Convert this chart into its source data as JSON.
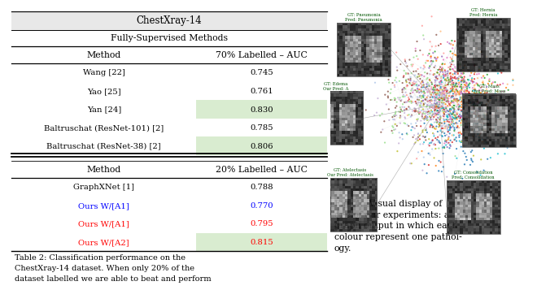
{
  "table_title": "ChestXray-14",
  "section1_header": "Fully-Supervised Methods",
  "col1_header": "Method",
  "col2_header_top": "70% Labelled – AUC",
  "col2_header_bottom": "20% Labelled – AUC",
  "top_rows": [
    {
      "method": "Wang [22]",
      "value": "0.745",
      "highlight": false,
      "color": "black"
    },
    {
      "method": "Yao [25]",
      "value": "0.761",
      "highlight": false,
      "color": "black"
    },
    {
      "method": "Yan [24]",
      "value": "0.830",
      "highlight": true,
      "color": "black"
    },
    {
      "method": "Baltruschat (ResNet-101) [2]",
      "value": "0.785",
      "highlight": false,
      "color": "black"
    },
    {
      "method": "Baltruschat (ResNet-38) [2]",
      "value": "0.806",
      "highlight": true,
      "color": "black"
    }
  ],
  "bottom_rows": [
    {
      "method": "GraphXNet [1]",
      "value": "0.788",
      "highlight": false,
      "color": "black"
    },
    {
      "method": "Ours W/[A1]",
      "value": "0.770",
      "highlight": false,
      "color": "blue"
    },
    {
      "method": "Ours W/[A1]",
      "value": "0.795",
      "highlight": false,
      "color": "red"
    },
    {
      "method": "Ours W/[A2]",
      "value": "0.815",
      "highlight": true,
      "color": "red"
    }
  ],
  "caption_text": "Table 2: Classification performance on the\nChestXray-14 dataset. When only 20% of the\ndataset labelled we are able to beat and perform",
  "fig_caption": "Fig. 4:  Visual display of\none of our experiments: a\ngraph output in which each\ncolour represent one pathol-\nogy.",
  "highlight_color": "#d9ecd0",
  "title_bg": "#e8e8e8",
  "scatter_colors": [
    "#ff7f0e",
    "#2ca02c",
    "#1f77b4",
    "#9467bd",
    "#d62728",
    "#17becf",
    "#bcbd22",
    "#e377c2",
    "#8c564b",
    "#ff9896",
    "#aec7e8",
    "#ffbb78",
    "#98df8a",
    "#c5b0d5"
  ],
  "edge_color": "#555555",
  "thumb_bg": "#606060"
}
